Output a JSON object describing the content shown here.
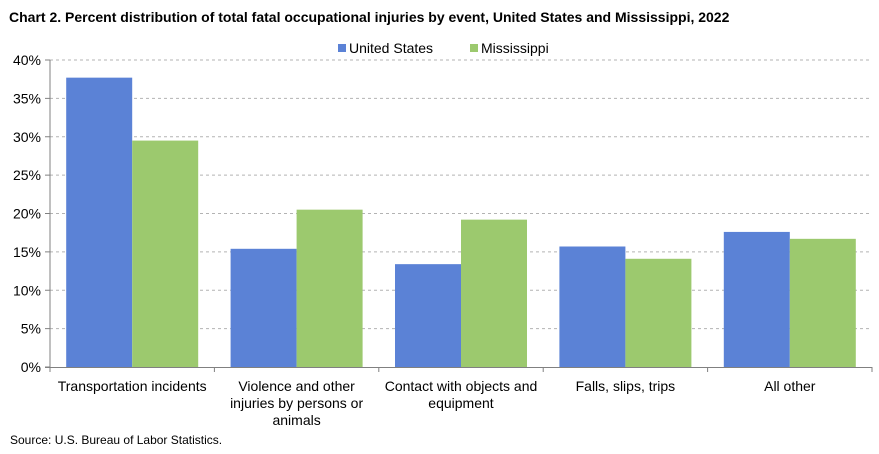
{
  "title": "Chart 2. Percent distribution of total fatal occupational injuries by event, United States and Mississippi, 2022",
  "source": "Source: U.S. Bureau of Labor Statistics.",
  "chart_data": {
    "type": "bar",
    "title": "Chart 2. Percent distribution of total fatal occupational injuries by event, United States and Mississippi, 2022",
    "categories": [
      [
        "Transportation incidents"
      ],
      [
        "Violence and other",
        "injuries by persons or",
        "animals"
      ],
      [
        "Contact with objects and",
        "equipment"
      ],
      [
        "Falls, slips, trips"
      ],
      [
        "All other"
      ]
    ],
    "series": [
      {
        "name": "United States",
        "color": "#5b82d6",
        "values": [
          37.7,
          15.4,
          13.4,
          15.7,
          17.6
        ]
      },
      {
        "name": "Mississippi",
        "color": "#9cc96e",
        "values": [
          29.5,
          20.5,
          19.2,
          14.1,
          16.7
        ]
      }
    ],
    "ylim": [
      0,
      40
    ],
    "yticks": [
      0,
      5,
      10,
      15,
      20,
      25,
      30,
      35,
      40
    ],
    "ytick_labels": [
      "0%",
      "5%",
      "10%",
      "15%",
      "20%",
      "25%",
      "30%",
      "35%",
      "40%"
    ],
    "grid": true,
    "legend_position": "top-center"
  }
}
